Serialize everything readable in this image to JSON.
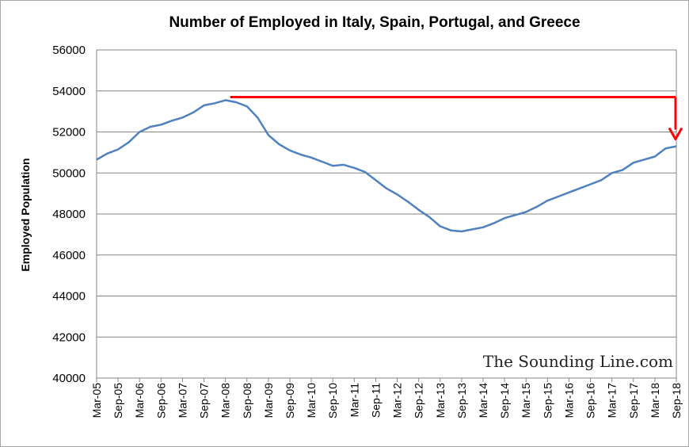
{
  "chart_data": {
    "type": "line",
    "title": "Number of Employed in Italy, Spain, Portugal, and Greece",
    "xlabel": "",
    "ylabel": "Employed Population",
    "ylim": [
      40000,
      56000
    ],
    "y_ticks": [
      "40000",
      "42000",
      "44000",
      "46000",
      "48000",
      "50000",
      "52000",
      "54000",
      "56000"
    ],
    "x_ticks": [
      "Mar-05",
      "Sep-05",
      "Mar-06",
      "Sep-06",
      "Mar-07",
      "Sep-07",
      "Mar-08",
      "Sep-08",
      "Mar-09",
      "Sep-09",
      "Mar-10",
      "Sep-10",
      "Mar-11",
      "Sep-11",
      "Mar-12",
      "Sep-12",
      "Mar-13",
      "Sep-13",
      "Mar-14",
      "Sep-14",
      "Mar-15",
      "Sep-15",
      "Mar-16",
      "Sep-16",
      "Mar-17",
      "Sep-17",
      "Mar-18",
      "Sep-18"
    ],
    "grid": true,
    "legend": "none",
    "series": [
      {
        "color": "#4f81bd",
        "x": [
          "Mar-05",
          "Jun-05",
          "Sep-05",
          "Dec-05",
          "Mar-06",
          "Jun-06",
          "Sep-06",
          "Dec-06",
          "Mar-07",
          "Jun-07",
          "Sep-07",
          "Dec-07",
          "Mar-08",
          "Jun-08",
          "Sep-08",
          "Dec-08",
          "Mar-09",
          "Jun-09",
          "Sep-09",
          "Dec-09",
          "Mar-10",
          "Jun-10",
          "Sep-10",
          "Dec-10",
          "Mar-11",
          "Jun-11",
          "Sep-11",
          "Dec-11",
          "Mar-12",
          "Jun-12",
          "Sep-12",
          "Dec-12",
          "Mar-13",
          "Jun-13",
          "Sep-13",
          "Dec-13",
          "Mar-14",
          "Jun-14",
          "Sep-14",
          "Dec-14",
          "Mar-15",
          "Jun-15",
          "Sep-15",
          "Dec-15",
          "Mar-16",
          "Jun-16",
          "Sep-16",
          "Dec-16",
          "Mar-17",
          "Jun-17",
          "Sep-17",
          "Dec-17",
          "Mar-18",
          "Jun-18",
          "Sep-18"
        ],
        "values": [
          50650,
          50950,
          51150,
          51500,
          52000,
          52250,
          52350,
          52550,
          52700,
          52950,
          53300,
          53400,
          53550,
          53450,
          53250,
          52700,
          51850,
          51400,
          51100,
          50900,
          50750,
          50550,
          50350,
          50400,
          50250,
          50050,
          49650,
          49250,
          48950,
          48600,
          48200,
          47850,
          47400,
          47200,
          47150,
          47250,
          47350,
          47550,
          47800,
          47950,
          48100,
          48350,
          48650,
          48850,
          49050,
          49250,
          49450,
          49650,
          50000,
          50150,
          50500,
          50650,
          50800,
          51200,
          51300
        ]
      }
    ],
    "annotations": [
      {
        "type": "horizontal-line-with-down-arrow",
        "color": "#ff0000",
        "y": 53700,
        "x_start": "Mar-08",
        "x_end": "Sep-18",
        "arrow_to": 51650
      }
    ],
    "watermark": "The Sounding Line.com"
  }
}
